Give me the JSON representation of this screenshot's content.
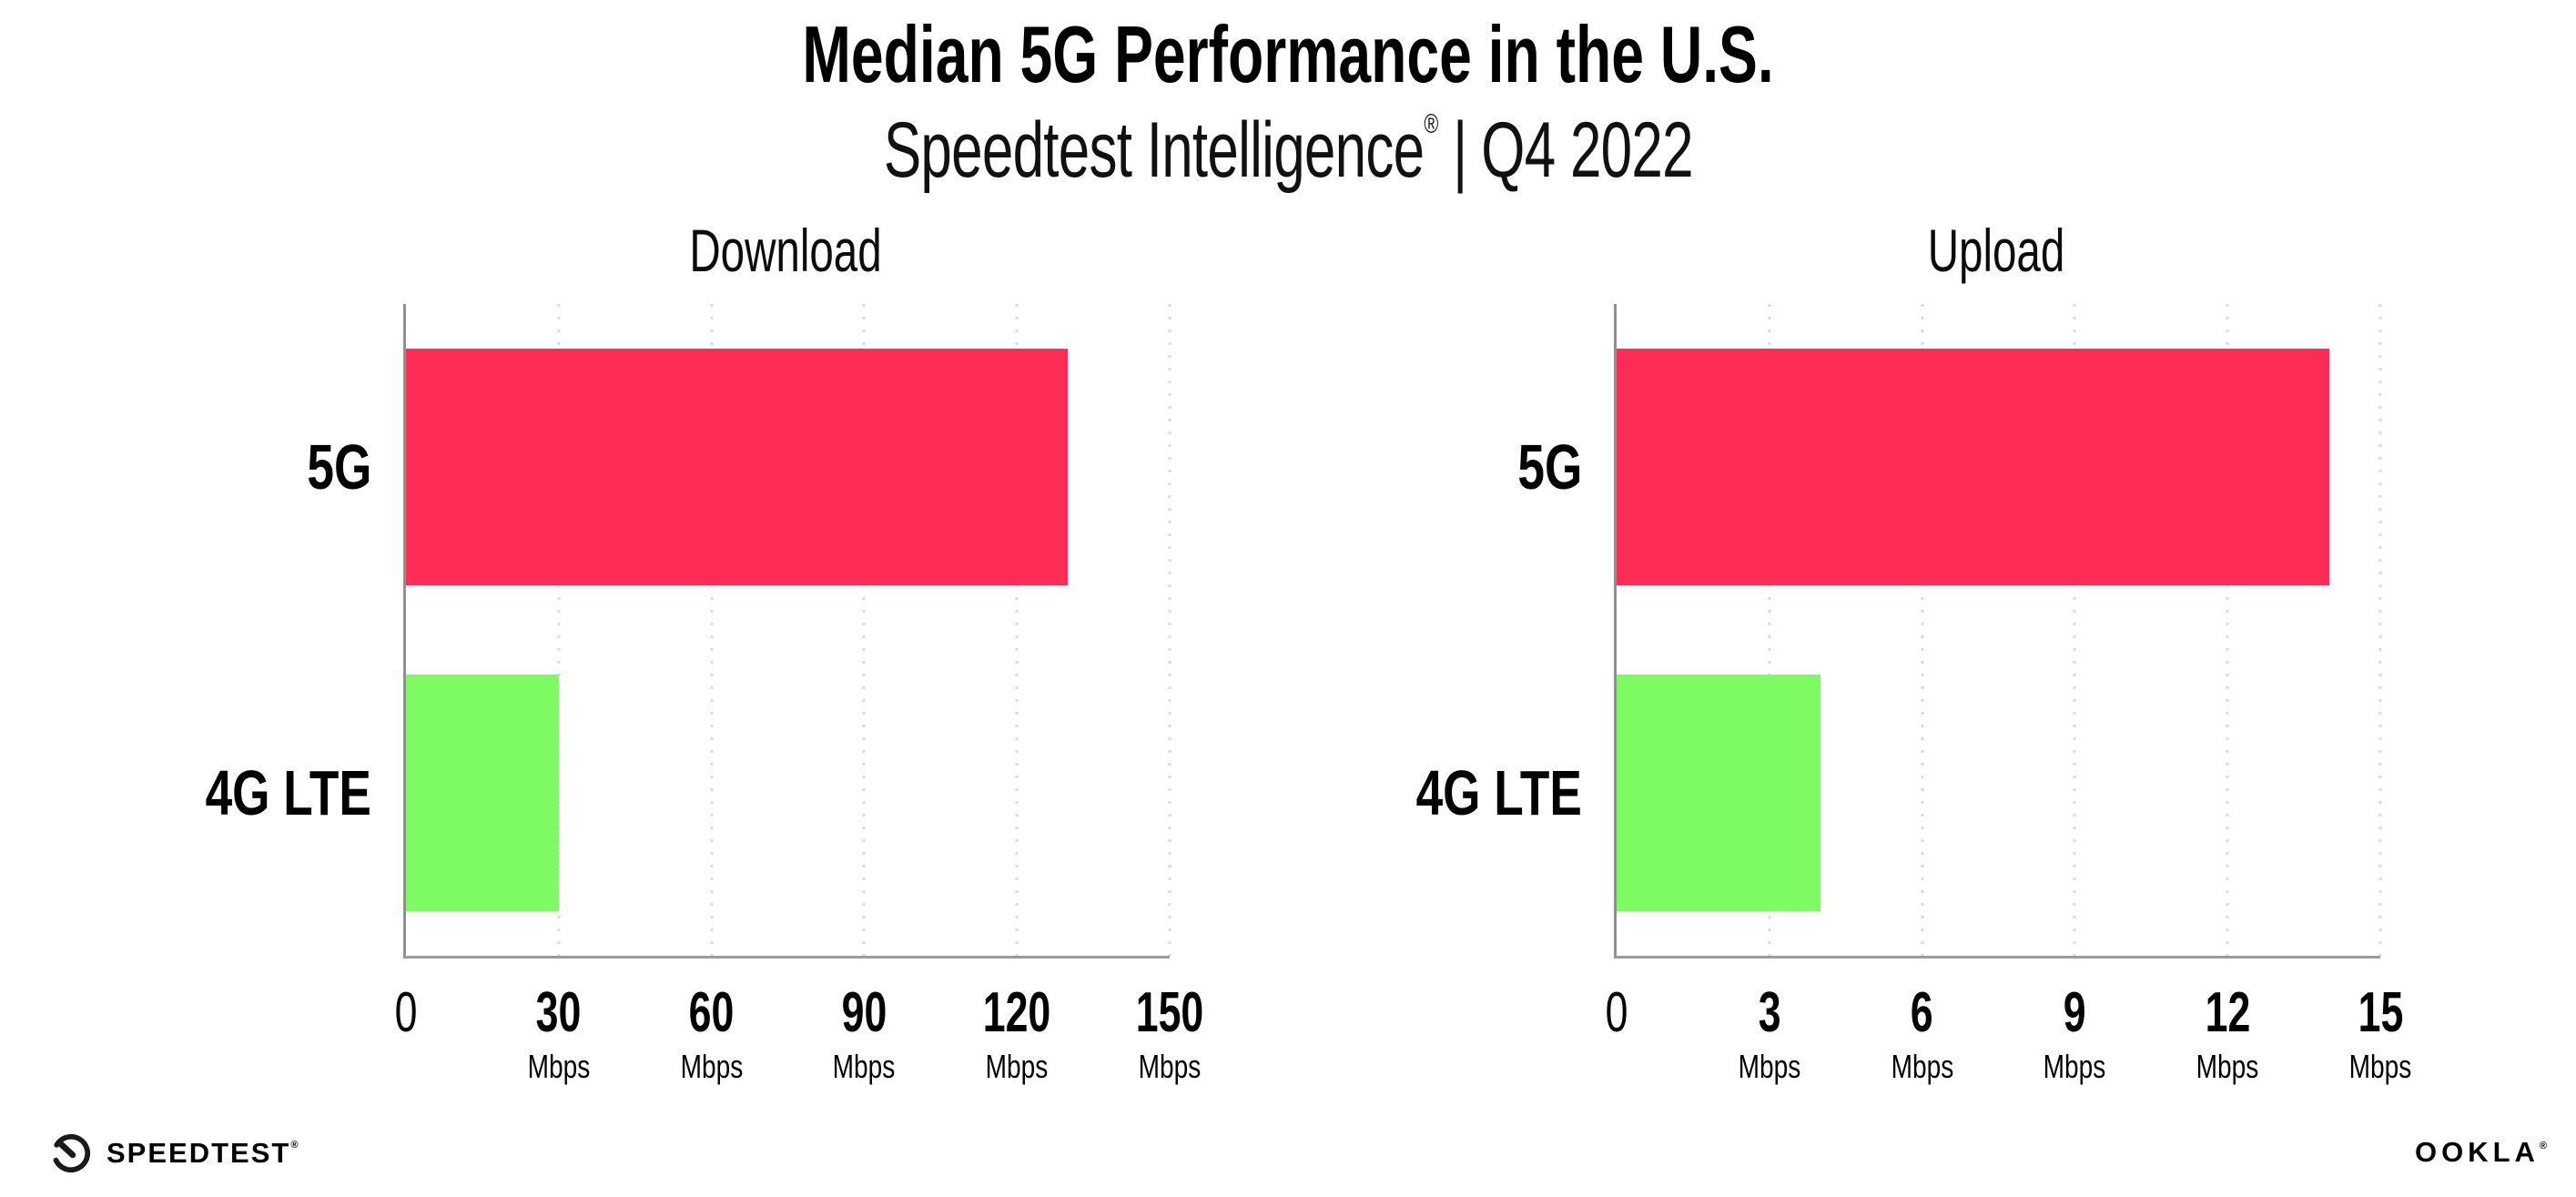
{
  "title": "Median 5G Performance in the U.S.",
  "subtitle": {
    "brand": "Speedtest Intelligence",
    "registered_mark": "®",
    "separator": "|",
    "period": "Q4 2022"
  },
  "footer": {
    "speedtest_icon": "speedtest-gauge-icon",
    "speedtest_wordmark": "SPEEDTEST",
    "speedtest_mark": "®",
    "ookla_wordmark": "OOKLA",
    "ookla_mark": "®"
  },
  "colors": {
    "bar_5g": "#ff2d55",
    "bar_4g_lte": "#7efb63",
    "axis_line": "#8f8f94",
    "gridline": "#d9d9e4",
    "text": "#000000"
  },
  "chart_data": [
    {
      "type": "bar",
      "orientation": "horizontal",
      "title": "Download",
      "categories": [
        "5G",
        "4G LTE"
      ],
      "values": [
        130,
        30
      ],
      "unit": "Mbps",
      "xlim": [
        0,
        150
      ],
      "xticks": [
        0,
        30,
        60,
        90,
        120,
        150
      ],
      "bar_colors": [
        "#ff2d55",
        "#7efb63"
      ],
      "grid": "vertical-dotted-major",
      "legend": "none"
    },
    {
      "type": "bar",
      "orientation": "horizontal",
      "title": "Upload",
      "categories": [
        "5G",
        "4G LTE"
      ],
      "values": [
        14,
        4
      ],
      "unit": "Mbps",
      "xlim": [
        0,
        15
      ],
      "xticks": [
        0,
        3,
        6,
        9,
        12,
        15
      ],
      "bar_colors": [
        "#ff2d55",
        "#7efb63"
      ],
      "grid": "vertical-dotted-major",
      "legend": "none"
    }
  ]
}
